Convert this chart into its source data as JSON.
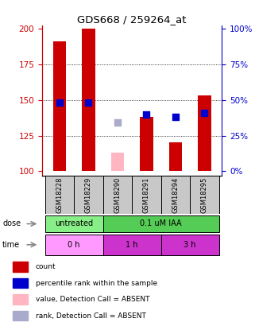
{
  "title": "GDS668 / 259264_at",
  "samples": [
    "GSM18228",
    "GSM18229",
    "GSM18290",
    "GSM18291",
    "GSM18294",
    "GSM18295"
  ],
  "red_bars": [
    191,
    200,
    null,
    138,
    120,
    153
  ],
  "pink_bars": [
    null,
    null,
    113,
    null,
    null,
    null
  ],
  "blue_squares": [
    148,
    148,
    null,
    140,
    138,
    141
  ],
  "lavender_squares": [
    null,
    null,
    134,
    null,
    null,
    null
  ],
  "ylim": [
    97,
    202
  ],
  "yticks_left": [
    100,
    125,
    150,
    175,
    200
  ],
  "ybase": 100,
  "bar_color": "#CC0000",
  "pink_color": "#FFB6C1",
  "blue_color": "#0000CC",
  "lavender_color": "#AAAACC",
  "sample_bg": "#C8C8C8",
  "dose_untreated_color": "#88EE88",
  "dose_iaa_color": "#55CC55",
  "time_0h_color": "#FF99FF",
  "time_1h_color": "#CC33CC",
  "time_3h_color": "#CC33CC",
  "bar_width": 0.45,
  "square_size": 40,
  "legend_labels": [
    "count",
    "percentile rank within the sample",
    "value, Detection Call = ABSENT",
    "rank, Detection Call = ABSENT"
  ],
  "legend_colors": [
    "#CC0000",
    "#0000CC",
    "#FFB6C1",
    "#AAAACC"
  ]
}
